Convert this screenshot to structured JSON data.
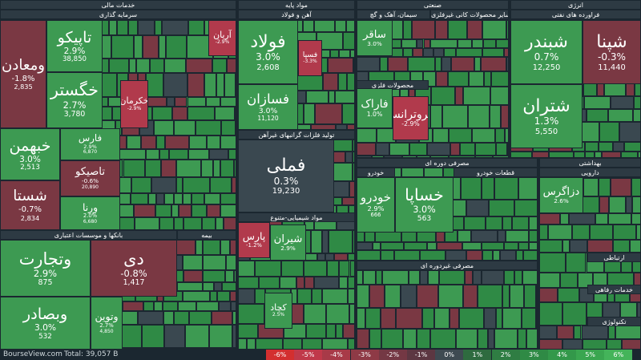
{
  "sectors": [
    {
      "title": "خدمات مالی"
    },
    {
      "title": "مواد پایه"
    },
    {
      "title": "صنعتی"
    },
    {
      "title": "انرژی"
    },
    {
      "title": "سرمایه گذاری"
    },
    {
      "title": "آهن و فولاد"
    },
    {
      "title": "فراورده های نفتی"
    },
    {
      "title": "تولید فلزات گرانبهای غیرآهن"
    },
    {
      "title": "مواد شیمیایی-متنوع"
    },
    {
      "title": "بانکها و موسسات اعتباری"
    },
    {
      "title": "بیمه"
    },
    {
      "title": "مصرفی دوره ای"
    },
    {
      "title": "خودرو"
    },
    {
      "title": "قطعات خودرو"
    },
    {
      "title": "بهداشتی"
    },
    {
      "title": "دارویی"
    },
    {
      "title": "مصرفی غیردوره ای"
    },
    {
      "title": "ارتباطی"
    },
    {
      "title": "خدمات رفاهی"
    },
    {
      "title": "تکنولوژی"
    },
    {
      "title": "سیمان، آهک و گچ"
    },
    {
      "title": "سایر محصولات کانی غیرفلزی"
    },
    {
      "title": "محصولات فلزی"
    }
  ],
  "tiles": [
    {
      "name": "ومعادن",
      "change": "-1.8%",
      "price": "2,835"
    },
    {
      "name": "تاپیکو",
      "change": "2.9%",
      "price": "38,850"
    },
    {
      "name": "خگستر",
      "change": "2.7%",
      "price": "3,780"
    },
    {
      "name": "خبهمن",
      "change": "3.0%",
      "price": "2,513"
    },
    {
      "name": "شستا",
      "change": "-0.7%",
      "price": "2,834"
    },
    {
      "name": "فارس",
      "change": "2.9%",
      "price": "6,870"
    },
    {
      "name": "تاصیکو",
      "change": "-0.6%",
      "price": "20,890"
    },
    {
      "name": "ورنا",
      "change": "2.0%",
      "price": "6,680"
    },
    {
      "name": "وتجارت",
      "change": "2.9%",
      "price": "875"
    },
    {
      "name": "وبصادر",
      "change": "3.0%",
      "price": "532"
    },
    {
      "name": "دی",
      "change": "-0.8%",
      "price": "1,417"
    },
    {
      "name": "وتوین",
      "change": "2.7%",
      "price": "4,850"
    },
    {
      "name": "فولاد",
      "change": "3.0%",
      "price": "2,608"
    },
    {
      "name": "فسازان",
      "change": "3.0%",
      "price": "11,120"
    },
    {
      "name": "فملی",
      "change": "0.3%",
      "price": "19,230"
    },
    {
      "name": "خساپا",
      "change": "3.0%",
      "price": "563"
    },
    {
      "name": "خودرو",
      "change": "2.9%",
      "price": "666"
    },
    {
      "name": "شبندر",
      "change": "0.7%",
      "price": "12,250"
    },
    {
      "name": "شپنا",
      "change": "-0.3%",
      "price": "11,440"
    },
    {
      "name": "شتران",
      "change": "1.3%",
      "price": "5,550"
    },
    {
      "name": "خکرمان",
      "change": "-2.9%",
      "price": ""
    },
    {
      "name": "آریان",
      "change": "-2.9%",
      "price": ""
    },
    {
      "name": "پارس",
      "change": "-1.2%",
      "price": ""
    },
    {
      "name": "شیران",
      "change": "2.9%",
      "price": ""
    },
    {
      "name": "دزاگرس",
      "change": "2.6%",
      "price": ""
    },
    {
      "name": "ساقر",
      "change": "3.0%",
      "price": ""
    },
    {
      "name": "فاراک",
      "change": "1.0%",
      "price": ""
    },
    {
      "name": "پتروترانس",
      "change": "-2.9%",
      "price": ""
    },
    {
      "name": "فسپا",
      "change": "-3.3%",
      "price": ""
    },
    {
      "name": "کچاد",
      "change": "2.5%",
      "price": ""
    }
  ],
  "footer": {
    "brand": "BourseView.com",
    "total": "Total: 39,057 B",
    "legend": [
      "-6%",
      "-5%",
      "-4%",
      "-3%",
      "-2%",
      "-1%",
      "0%",
      "1%",
      "2%",
      "3%",
      "4%",
      "5%",
      "6%"
    ]
  }
}
